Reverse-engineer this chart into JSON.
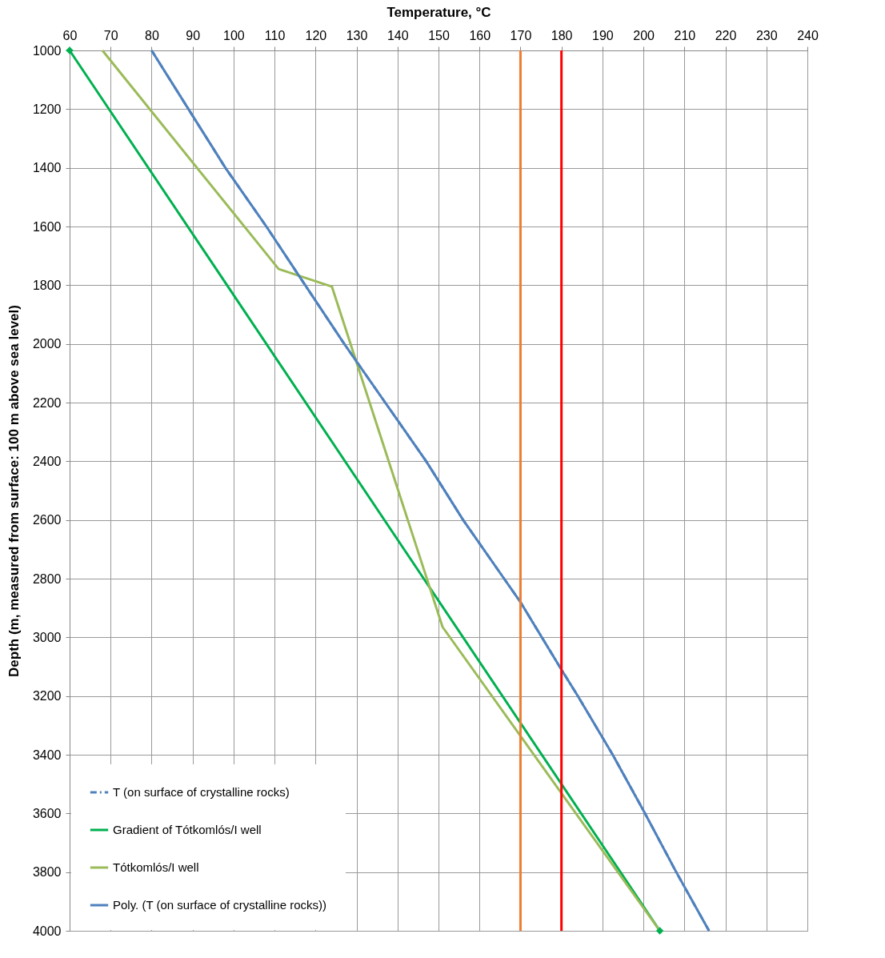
{
  "chart_data": {
    "type": "line",
    "xlabel": "Temperature, °C",
    "ylabel": "Depth (m,  measured from surface: 100 m above sea level)",
    "xlim": [
      60,
      240
    ],
    "xticks": [
      60,
      70,
      80,
      90,
      100,
      110,
      120,
      130,
      140,
      150,
      160,
      170,
      180,
      190,
      200,
      210,
      220,
      230,
      240
    ],
    "ylim": [
      4000,
      1000
    ],
    "yticks": [
      1000,
      1200,
      1400,
      1600,
      1800,
      2000,
      2200,
      2400,
      2600,
      2800,
      3000,
      3200,
      3400,
      3600,
      3800,
      4000
    ],
    "grid": true,
    "legend": "bottom left",
    "series": [
      {
        "name": "T (on surface of crystalline rocks)",
        "color": "#4f81bd",
        "line_style": "dashed",
        "x": [
          80,
          89,
          98,
          108,
          117,
          127,
          137,
          147,
          156,
          166,
          170,
          180,
          184,
          192.5,
          200,
          208,
          216
        ],
        "values": [
          1000,
          1200,
          1400,
          1600,
          1790,
          2000,
          2200,
          2400,
          2600,
          2800,
          2880,
          3110,
          3200,
          3400,
          3590,
          3800,
          4000
        ]
      },
      {
        "name": "Gradient of Tótkomlós/I well",
        "color": "#00b050",
        "marker": "diamond",
        "x": [
          60,
          204
        ],
        "values": [
          1000,
          4000
        ]
      },
      {
        "name": "Tótkomlós/I well",
        "color": "#9bbb59",
        "x": [
          68,
          111,
          124,
          151,
          204
        ],
        "values": [
          1000,
          1745,
          1805,
          2965,
          4000
        ]
      },
      {
        "name": "Poly. (T (on surface of crystalline rocks))",
        "color": "#4f81bd",
        "x": [
          80,
          89,
          98,
          108,
          117,
          127,
          137,
          147,
          156,
          166,
          170,
          180,
          184,
          192.5,
          200,
          208,
          216
        ],
        "values": [
          1000,
          1200,
          1400,
          1600,
          1790,
          2000,
          2200,
          2400,
          2600,
          2800,
          2880,
          3110,
          3200,
          3400,
          3590,
          3800,
          4000
        ]
      }
    ],
    "ref_lines": [
      {
        "axis": "x",
        "value": 170,
        "color": "#ed7d31"
      },
      {
        "axis": "x",
        "value": 180,
        "color": "#ff0000"
      }
    ]
  }
}
